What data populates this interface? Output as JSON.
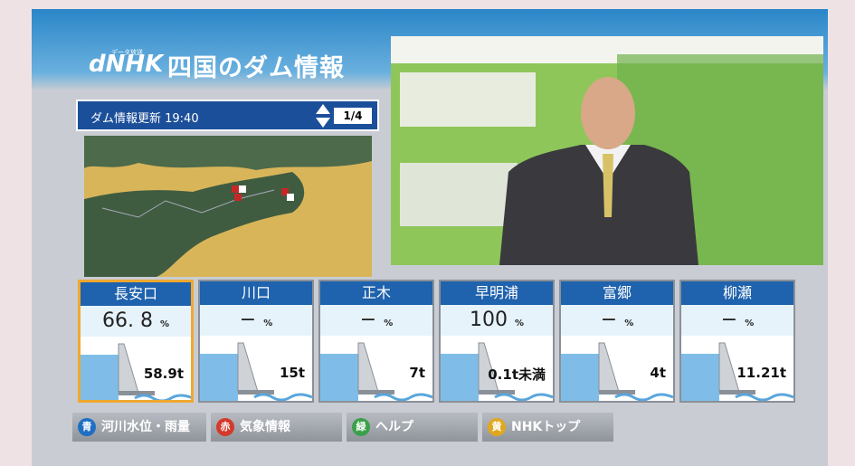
{
  "header": {
    "logo": "dNHK",
    "logo_caption": "データ放送",
    "title": "四国のダム情報"
  },
  "update": {
    "label": "ダム情報更新 19:40",
    "page": "1/4"
  },
  "dams": [
    {
      "name": "長安口",
      "rate": "66. 8",
      "unit": "%",
      "discharge": "58.9t"
    },
    {
      "name": "川口",
      "rate": "−",
      "unit": "%",
      "discharge": "15t"
    },
    {
      "name": "正木",
      "rate": "−",
      "unit": "%",
      "discharge": "7t"
    },
    {
      "name": "早明浦",
      "rate": "100",
      "unit": "%",
      "discharge": "0.1t未満"
    },
    {
      "name": "富郷",
      "rate": "−",
      "unit": "%",
      "discharge": "4t"
    },
    {
      "name": "柳瀬",
      "rate": "−",
      "unit": "%",
      "discharge": "11.21t"
    }
  ],
  "buttons": [
    {
      "key": "青",
      "label": "河川水位・雨量"
    },
    {
      "key": "赤",
      "label": "気象情報"
    },
    {
      "key": "緑",
      "label": "ヘルプ"
    },
    {
      "key": "黄",
      "label": "NHKトップ"
    }
  ]
}
